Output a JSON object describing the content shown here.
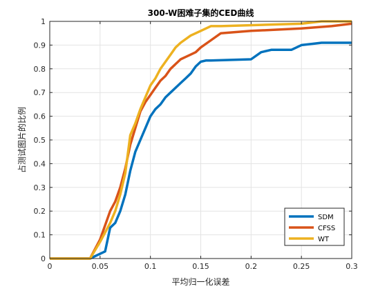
{
  "chart_data": {
    "type": "line",
    "title": "300-W困难子集的CED曲线",
    "xlabel": "平均归一化误差",
    "ylabel": "占测试图片的比例",
    "xlim": [
      0,
      0.3
    ],
    "ylim": [
      0,
      1
    ],
    "xticks": [
      "0",
      "0.05",
      "0.1",
      "0.15",
      "0.2",
      "0.25",
      "0.3"
    ],
    "yticks": [
      "0",
      "0.1",
      "0.2",
      "0.3",
      "0.4",
      "0.5",
      "0.6",
      "0.7",
      "0.8",
      "0.9",
      "1"
    ],
    "grid": true,
    "legend_position": "bottom-right",
    "series": [
      {
        "name": "SDM",
        "color": "#0072BD",
        "x": [
          0,
          0.04,
          0.055,
          0.06,
          0.065,
          0.07,
          0.075,
          0.08,
          0.085,
          0.09,
          0.095,
          0.1,
          0.105,
          0.11,
          0.115,
          0.12,
          0.125,
          0.13,
          0.135,
          0.14,
          0.145,
          0.15,
          0.155,
          0.16,
          0.2,
          0.21,
          0.22,
          0.24,
          0.25,
          0.26,
          0.27,
          0.3
        ],
        "y": [
          0,
          0,
          0.03,
          0.13,
          0.15,
          0.2,
          0.27,
          0.37,
          0.45,
          0.5,
          0.55,
          0.6,
          0.63,
          0.65,
          0.68,
          0.7,
          0.72,
          0.74,
          0.76,
          0.78,
          0.81,
          0.83,
          0.835,
          0.835,
          0.84,
          0.87,
          0.88,
          0.88,
          0.9,
          0.905,
          0.91,
          0.91
        ]
      },
      {
        "name": "CFSS",
        "color": "#D95319",
        "x": [
          0,
          0.04,
          0.05,
          0.06,
          0.065,
          0.07,
          0.075,
          0.08,
          0.085,
          0.09,
          0.095,
          0.1,
          0.105,
          0.11,
          0.115,
          0.12,
          0.125,
          0.13,
          0.135,
          0.14,
          0.145,
          0.15,
          0.16,
          0.17,
          0.2,
          0.25,
          0.28,
          0.3
        ],
        "y": [
          0,
          0,
          0.08,
          0.2,
          0.24,
          0.3,
          0.38,
          0.48,
          0.55,
          0.62,
          0.66,
          0.69,
          0.72,
          0.75,
          0.77,
          0.8,
          0.82,
          0.84,
          0.85,
          0.86,
          0.87,
          0.89,
          0.92,
          0.95,
          0.96,
          0.97,
          0.98,
          0.99
        ]
      },
      {
        "name": "WT",
        "color": "#EDB120",
        "x": [
          0,
          0.04,
          0.05,
          0.06,
          0.065,
          0.07,
          0.075,
          0.08,
          0.085,
          0.09,
          0.095,
          0.1,
          0.105,
          0.11,
          0.115,
          0.12,
          0.125,
          0.13,
          0.14,
          0.15,
          0.16,
          0.17,
          0.25,
          0.27,
          0.3
        ],
        "y": [
          0,
          0,
          0.07,
          0.15,
          0.2,
          0.27,
          0.36,
          0.52,
          0.57,
          0.63,
          0.68,
          0.73,
          0.76,
          0.8,
          0.83,
          0.86,
          0.89,
          0.91,
          0.94,
          0.96,
          0.98,
          0.98,
          0.99,
          1.0,
          1.0
        ]
      }
    ]
  }
}
